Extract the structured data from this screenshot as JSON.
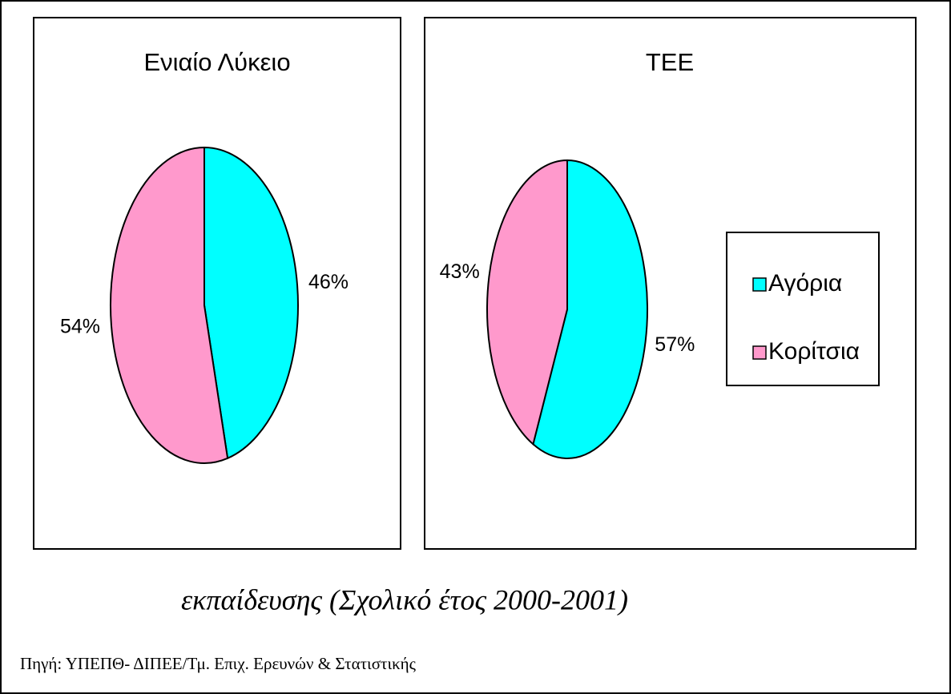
{
  "chart_data": [
    {
      "type": "pie",
      "title": "Ενιαίο Λύκειο",
      "values": [
        46,
        54
      ],
      "value_labels": [
        "46%",
        "54%"
      ],
      "colors": [
        "#00ffff",
        "#ff99cc"
      ]
    },
    {
      "type": "pie",
      "title": "ΤΕΕ",
      "categories": [
        "Αγόρια",
        "Κορίτσια"
      ],
      "values": [
        57,
        43
      ],
      "value_labels": [
        "57%",
        "43%"
      ],
      "colors": [
        "#00ffff",
        "#ff99cc"
      ],
      "legend": "right"
    }
  ],
  "caption": "εκπαίδευσης (Σχολικό έτος 2000-2001)",
  "source": "Πηγή: ΥΠΕΠΘ- ΔΙΠΕΕ/Τμ. Επιχ. Ερευνών & Στατιστικής"
}
